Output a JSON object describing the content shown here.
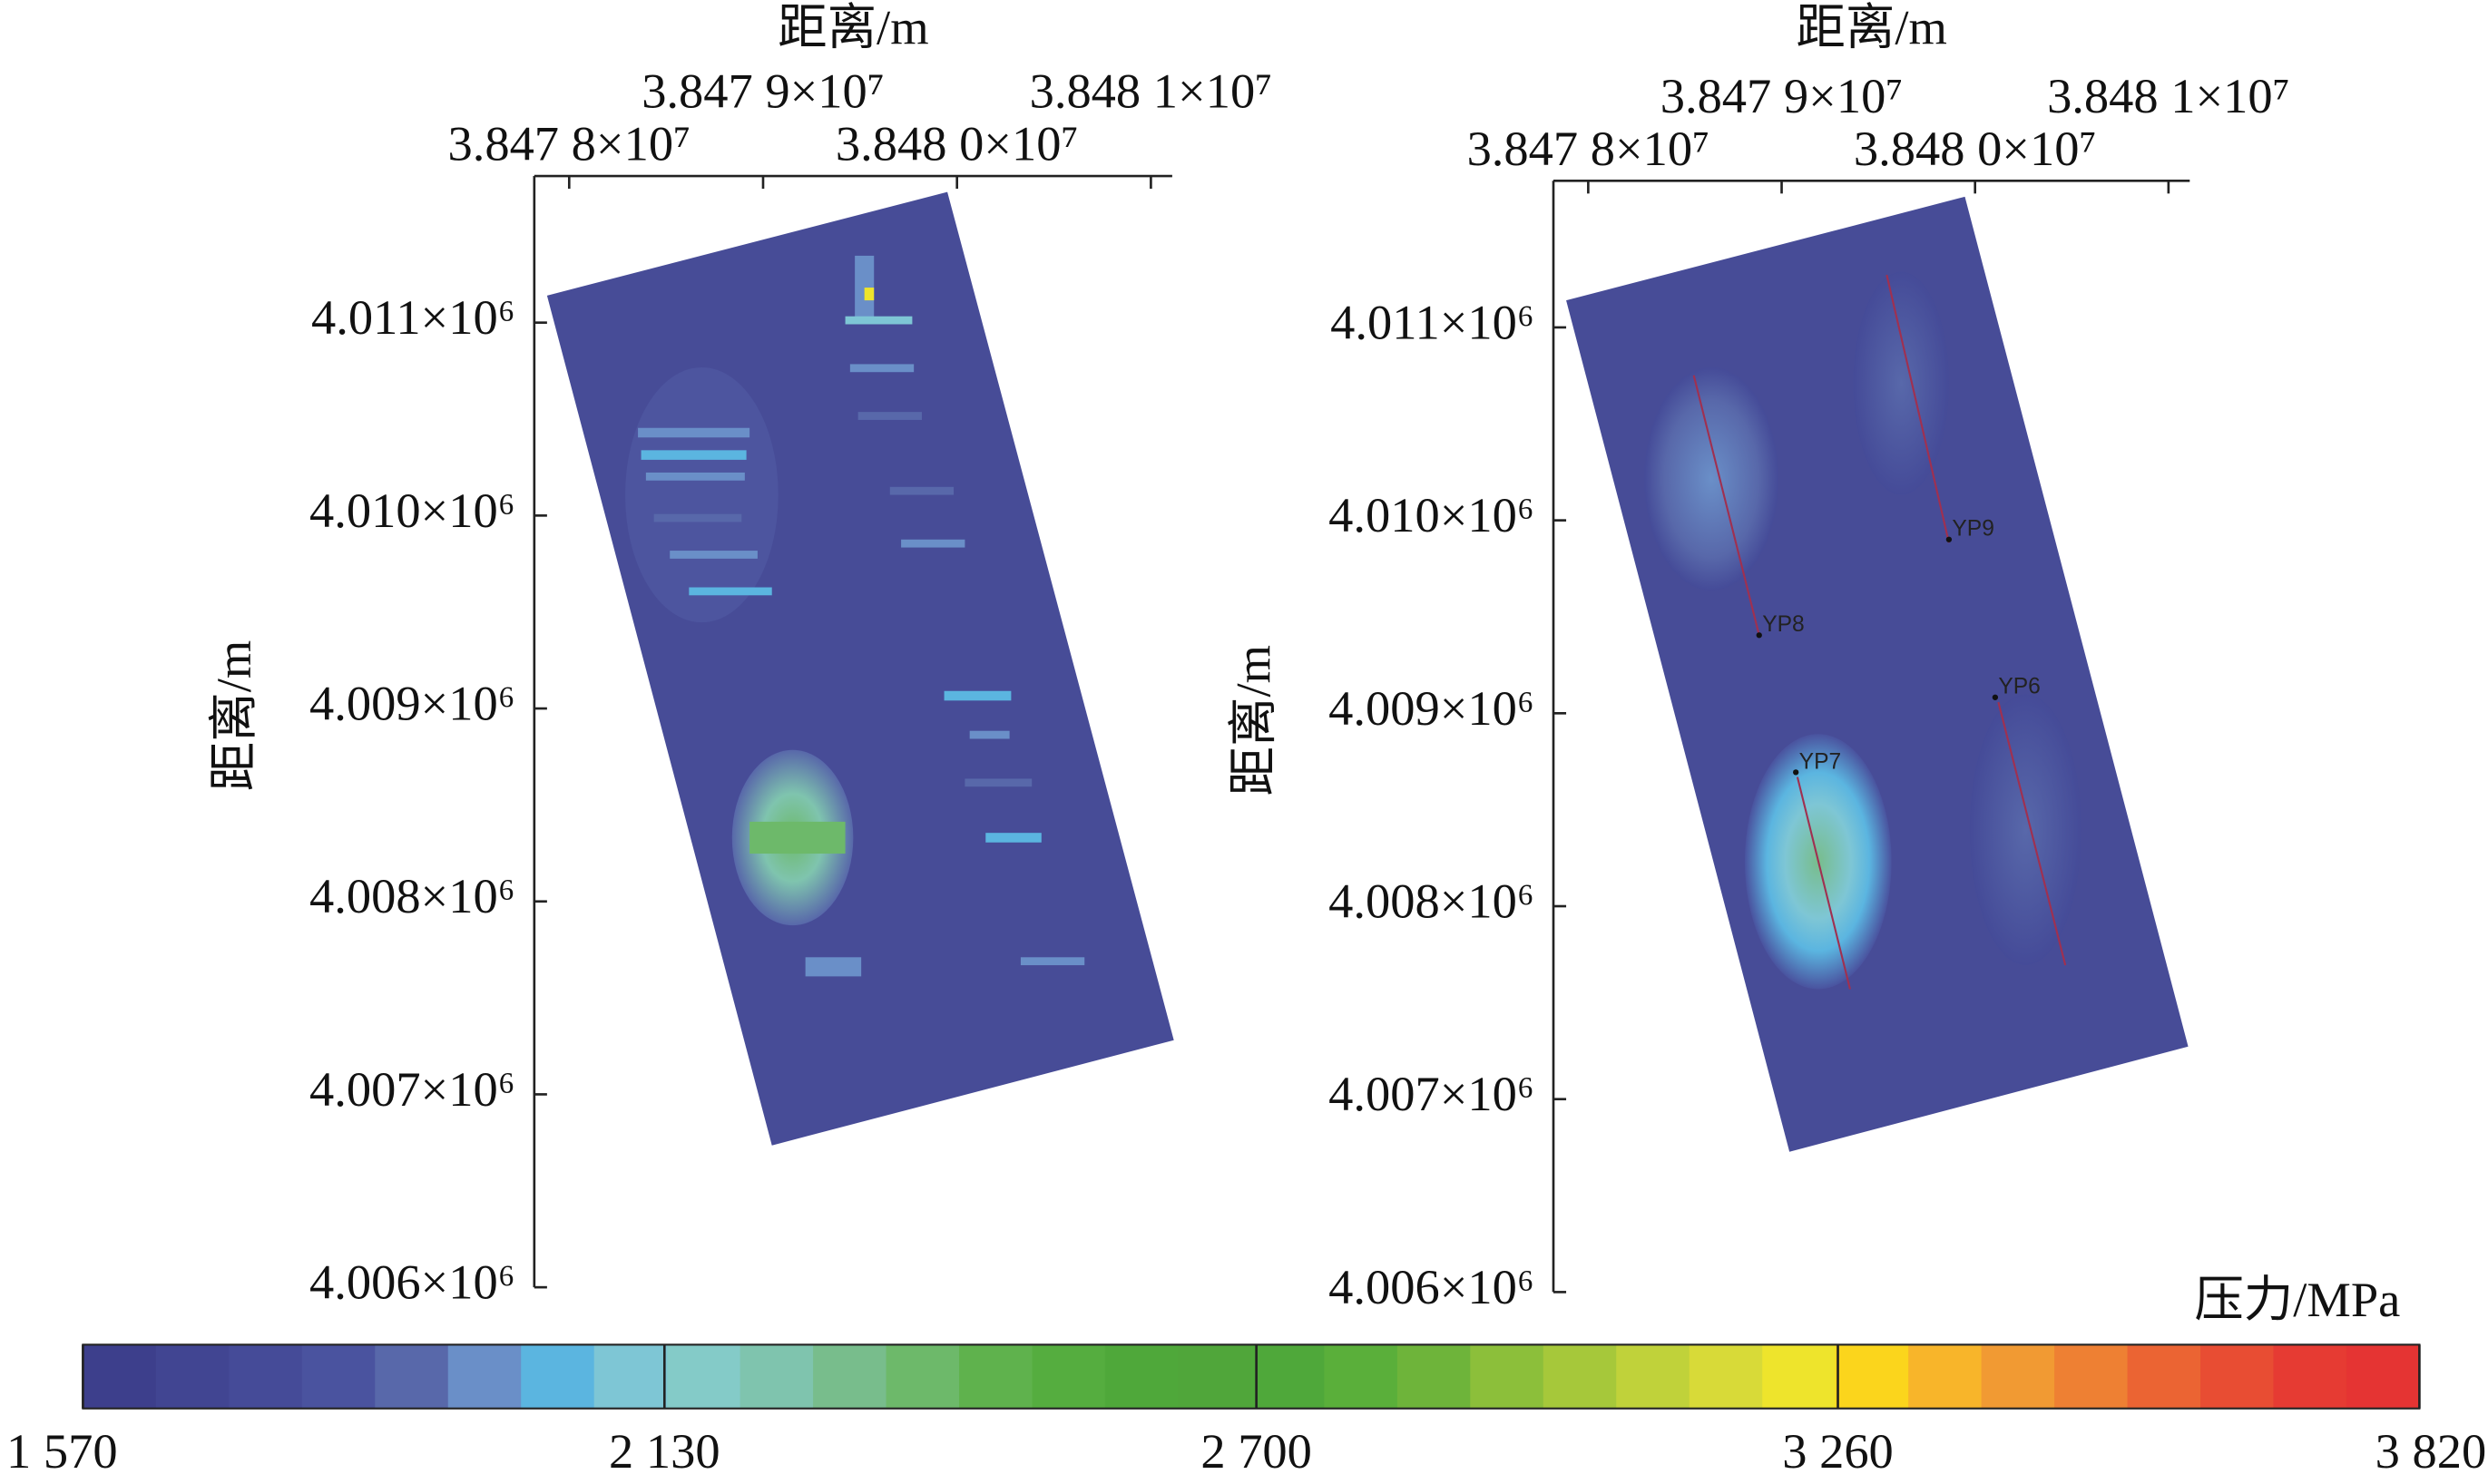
{
  "chart_data": [
    {
      "type": "heatmap",
      "xlabel": "距离/m",
      "ylabel": "距离/m",
      "xlim": [
        38477820,
        38481110
      ],
      "ylim": [
        4006000,
        4011760
      ],
      "xticks": [
        {
          "value": 38478000,
          "label": "3.847 8×10⁷"
        },
        {
          "value": 38479000,
          "label": "3.847 9×10⁷"
        },
        {
          "value": 38480000,
          "label": "3.848 0×10⁷"
        },
        {
          "value": 38481000,
          "label": "3.848 1×10⁷"
        }
      ],
      "yticks": [
        {
          "value": 4006000,
          "label": "4.006×10⁶"
        },
        {
          "value": 4007000,
          "label": "4.007×10⁶"
        },
        {
          "value": 4008000,
          "label": "4.008×10⁶"
        },
        {
          "value": 4009000,
          "label": "4.009×10⁶"
        },
        {
          "value": 4010000,
          "label": "4.010×10⁶"
        },
        {
          "value": 4011000,
          "label": "4.011×10⁶"
        }
      ]
    },
    {
      "type": "heatmap",
      "xlabel": "距离/m",
      "ylabel": "距离/m",
      "xlim": [
        38477820,
        38481110
      ],
      "ylim": [
        4006000,
        4011760
      ],
      "xticks": [
        {
          "value": 38478000,
          "label": "3.847 8×10⁷"
        },
        {
          "value": 38479000,
          "label": "3.847 9×10⁷"
        },
        {
          "value": 38480000,
          "label": "3.848 0×10⁷"
        },
        {
          "value": 38481000,
          "label": "3.848 1×10⁷"
        }
      ],
      "yticks": [
        {
          "value": 4006000,
          "label": "4.006×10⁶"
        },
        {
          "value": 4007000,
          "label": "4.007×10⁶"
        },
        {
          "value": 4008000,
          "label": "4.008×10⁶"
        },
        {
          "value": 4009000,
          "label": "4.009×10⁶"
        },
        {
          "value": 4010000,
          "label": "4.010×10⁶"
        },
        {
          "value": 4011000,
          "label": "4.011×10⁶"
        }
      ],
      "annotations": [
        "YP8",
        "YP9",
        "YP6",
        "YP7"
      ]
    }
  ],
  "colorbar": {
    "title": "压力/MPa",
    "lim": [
      1570,
      3820
    ],
    "ticks": [
      {
        "value": 1570,
        "label": "1 570"
      },
      {
        "value": 2130,
        "label": "2 130"
      },
      {
        "value": 2700,
        "label": "2 700"
      },
      {
        "value": 3260,
        "label": "3 260"
      },
      {
        "value": 3820,
        "label": "3 820"
      }
    ],
    "colors": [
      "#3d3f8c",
      "#414592",
      "#454b98",
      "#4a539f",
      "#5868aa",
      "#6a8fc8",
      "#5bb5e0",
      "#7ec6d5",
      "#84cbc8",
      "#7fc4ae",
      "#78bd8c",
      "#6db96a",
      "#5fb24d",
      "#55ad3f",
      "#4fa83a",
      "#50a63a",
      "#4fa83a",
      "#5aaf3a",
      "#6eb43a",
      "#8cbf3a",
      "#a6c83a",
      "#c0d23a",
      "#d8da38",
      "#eee42c",
      "#fbd51c",
      "#f8b52a",
      "#f19a33",
      "#ee8033",
      "#eb6433",
      "#e84d33",
      "#e63b33",
      "#e53433"
    ]
  }
}
